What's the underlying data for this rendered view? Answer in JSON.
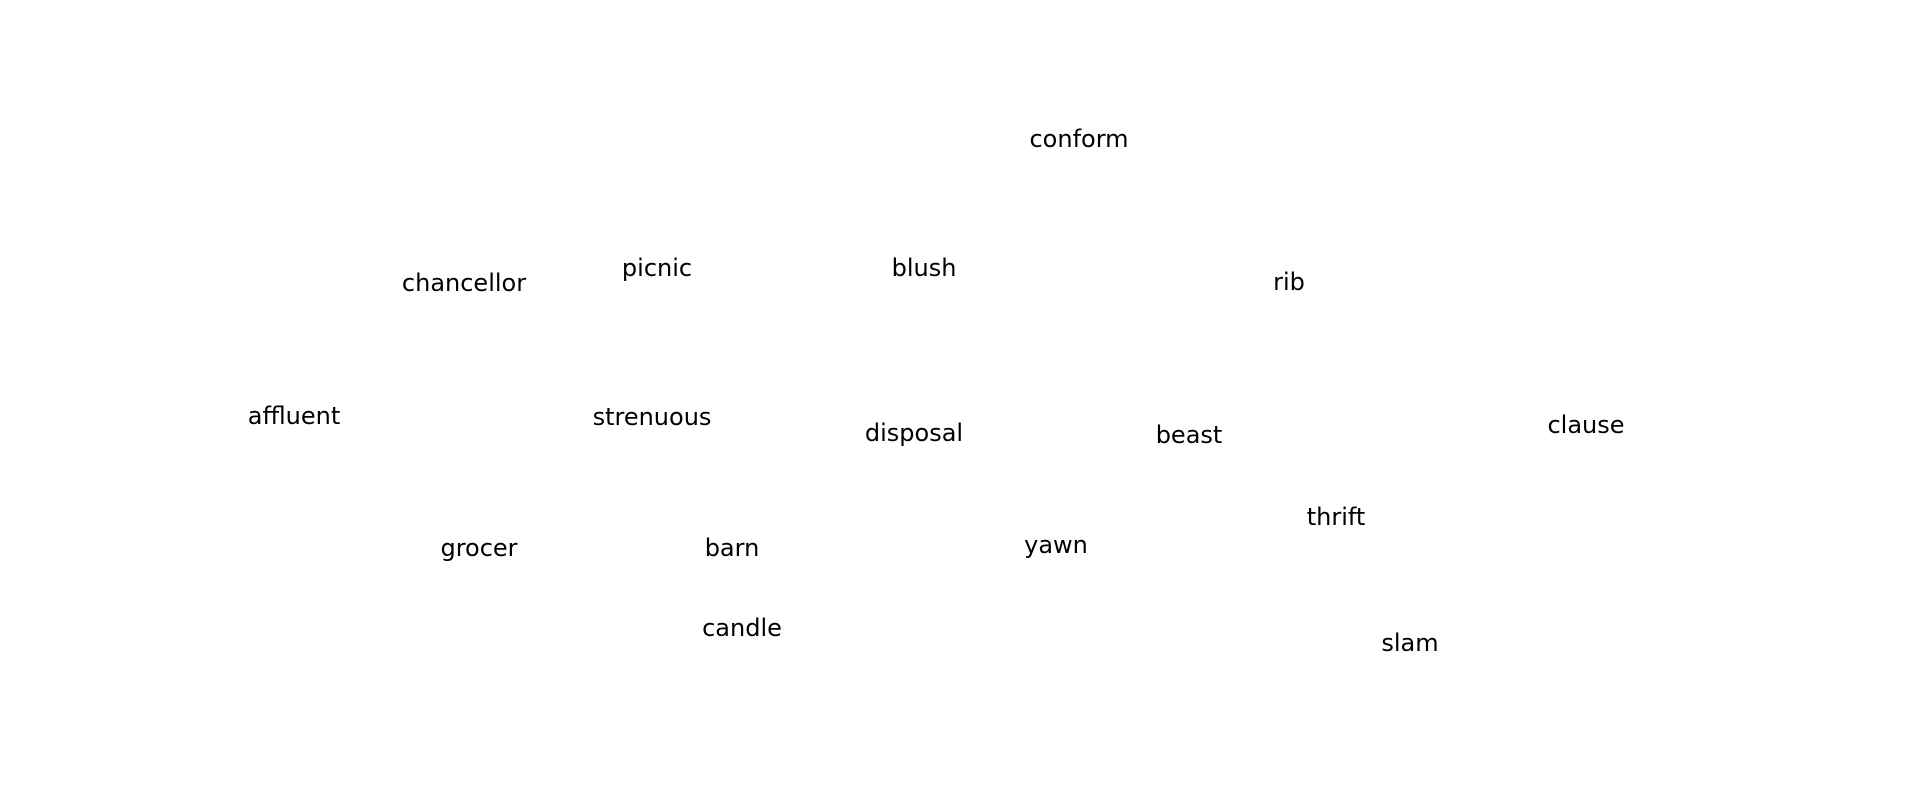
{
  "words": [
    "conform",
    "chancellor",
    "picnic",
    "blush",
    "rib",
    "affluent",
    "strenuous",
    "disposal",
    "beast",
    "clause",
    "thrift",
    "grocer",
    "barn",
    "yawn",
    "candle",
    "slam"
  ],
  "colors": {
    "background": "#ffffff",
    "text": "#000000"
  }
}
